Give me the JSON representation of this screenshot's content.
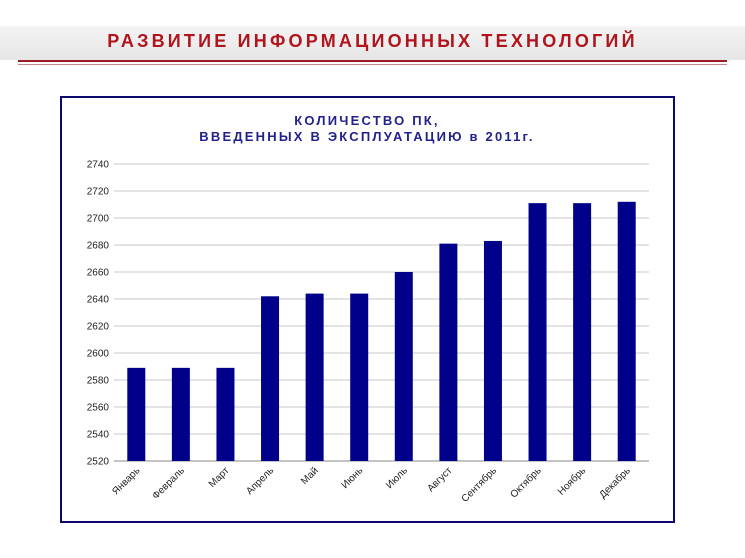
{
  "header": {
    "title": "РАЗВИТИЕ ИНФОРМАЦИОННЫХ ТЕХНОЛОГИЙ"
  },
  "chart_data": {
    "type": "bar",
    "title_lines": [
      "КОЛИЧЕСТВО ПК,",
      "ВВЕДЕННЫХ В ЭКСПЛУАТАЦИЮ в 2011г."
    ],
    "categories": [
      "Январь",
      "Февраль",
      "Март",
      "Апрель",
      "Май",
      "Июнь",
      "Июль",
      "Август",
      "Сентябрь",
      "Октябрь",
      "Ноябрь",
      "Декабрь"
    ],
    "values": [
      2589,
      2589,
      2589,
      2642,
      2644,
      2644,
      2660,
      2681,
      2683,
      2711,
      2711,
      2712
    ],
    "ylim": [
      2520,
      2740
    ],
    "yticks": [
      2520,
      2540,
      2560,
      2580,
      2600,
      2620,
      2640,
      2660,
      2680,
      2700,
      2720,
      2740
    ],
    "grid": true,
    "legend": "none",
    "bar_color": "#00008b"
  }
}
